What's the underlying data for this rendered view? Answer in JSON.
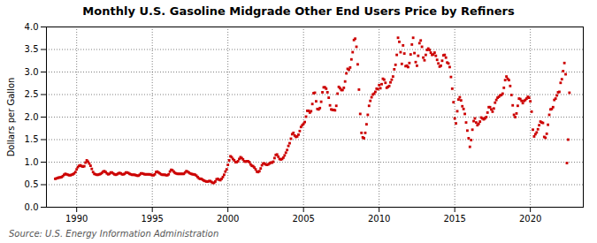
{
  "chart_data": {
    "type": "scatter",
    "title": "Monthly U.S. Gasoline Midgrade Other End Users Price by Refiners",
    "y_label": "Dollars per Gallon",
    "source": "Source: U.S. Energy Information Administration",
    "color": "#cc0000",
    "marker": "square",
    "grid": true,
    "xlim": [
      1988.0,
      2023.5
    ],
    "ylim": [
      0.0,
      4.0
    ],
    "xticks": [
      1990,
      1995,
      2000,
      2005,
      2010,
      2015,
      2020
    ],
    "yticks": [
      {
        "value": 0.0,
        "label": "0.0"
      },
      0.5,
      {
        "value": 1.0,
        "label": "1.0"
      },
      1.5,
      {
        "value": 2.0,
        "label": "2.0"
      },
      2.5,
      {
        "value": 3.0,
        "label": "3.0"
      },
      3.5,
      {
        "value": 4.0,
        "label": "4.0"
      }
    ],
    "x": [
      1988.583,
      1988.667,
      1988.75,
      1988.833,
      1988.917,
      1989.0,
      1989.083,
      1989.167,
      1989.25,
      1989.333,
      1989.417,
      1989.5,
      1989.583,
      1989.667,
      1989.75,
      1989.833,
      1989.917,
      1990.0,
      1990.083,
      1990.167,
      1990.25,
      1990.333,
      1990.417,
      1990.5,
      1990.583,
      1990.667,
      1990.75,
      1990.833,
      1990.917,
      1991.0,
      1991.083,
      1991.167,
      1991.25,
      1991.333,
      1991.417,
      1991.5,
      1991.583,
      1991.667,
      1991.75,
      1991.833,
      1991.917,
      1992.0,
      1992.083,
      1992.167,
      1992.25,
      1992.333,
      1992.417,
      1992.5,
      1992.583,
      1992.667,
      1992.75,
      1992.833,
      1992.917,
      1993.0,
      1993.083,
      1993.167,
      1993.25,
      1993.333,
      1993.417,
      1993.5,
      1993.583,
      1993.667,
      1993.75,
      1993.833,
      1993.917,
      1994.0,
      1994.083,
      1994.167,
      1994.25,
      1994.333,
      1994.417,
      1994.5,
      1994.583,
      1994.667,
      1994.75,
      1994.833,
      1994.917,
      1995.0,
      1995.083,
      1995.167,
      1995.25,
      1995.333,
      1995.417,
      1995.5,
      1995.583,
      1995.667,
      1995.75,
      1995.833,
      1995.917,
      1996.0,
      1996.083,
      1996.167,
      1996.25,
      1996.333,
      1996.417,
      1996.5,
      1996.583,
      1996.667,
      1996.75,
      1996.833,
      1996.917,
      1997.0,
      1997.083,
      1997.167,
      1997.25,
      1997.333,
      1997.417,
      1997.5,
      1997.583,
      1997.667,
      1997.75,
      1997.833,
      1997.917,
      1998.0,
      1998.083,
      1998.167,
      1998.25,
      1998.333,
      1998.417,
      1998.5,
      1998.583,
      1998.667,
      1998.75,
      1998.833,
      1998.917,
      1999.0,
      1999.083,
      1999.167,
      1999.25,
      1999.333,
      1999.417,
      1999.5,
      1999.583,
      1999.667,
      1999.75,
      1999.833,
      1999.917,
      2000.0,
      2000.083,
      2000.167,
      2000.25,
      2000.333,
      2000.417,
      2000.5,
      2000.583,
      2000.667,
      2000.75,
      2000.833,
      2000.917,
      2001.0,
      2001.083,
      2001.167,
      2001.25,
      2001.333,
      2001.417,
      2001.5,
      2001.583,
      2001.667,
      2001.75,
      2001.833,
      2001.917,
      2002.0,
      2002.083,
      2002.167,
      2002.25,
      2002.333,
      2002.417,
      2002.5,
      2002.583,
      2002.667,
      2002.75,
      2002.833,
      2002.917,
      2003.0,
      2003.083,
      2003.167,
      2003.25,
      2003.333,
      2003.417,
      2003.5,
      2003.583,
      2003.667,
      2003.75,
      2003.833,
      2003.917,
      2004.0,
      2004.083,
      2004.167,
      2004.25,
      2004.333,
      2004.417,
      2004.5,
      2004.583,
      2004.667,
      2004.75,
      2004.833,
      2004.917,
      2005.0,
      2005.083,
      2005.167,
      2005.25,
      2005.333,
      2005.417,
      2005.5,
      2005.583,
      2005.667,
      2005.75,
      2005.833,
      2005.917,
      2006.0,
      2006.083,
      2006.167,
      2006.25,
      2006.333,
      2006.417,
      2006.5,
      2006.583,
      2006.667,
      2006.75,
      2006.833,
      2006.917,
      2007.0,
      2007.083,
      2007.167,
      2007.25,
      2007.333,
      2007.417,
      2007.5,
      2007.583,
      2007.667,
      2007.75,
      2007.833,
      2007.917,
      2008.0,
      2008.083,
      2008.167,
      2008.25,
      2008.333,
      2008.417,
      2008.5,
      2008.583,
      2008.667,
      2008.75,
      2008.833,
      2008.917,
      2009.0,
      2009.083,
      2009.167,
      2009.25,
      2009.333,
      2009.417,
      2009.5,
      2009.583,
      2009.667,
      2009.75,
      2009.833,
      2009.917,
      2010.0,
      2010.083,
      2010.167,
      2010.25,
      2010.333,
      2010.417,
      2010.5,
      2010.583,
      2010.667,
      2010.75,
      2010.833,
      2010.917,
      2011.0,
      2011.083,
      2011.167,
      2011.25,
      2011.333,
      2011.417,
      2011.5,
      2011.583,
      2011.667,
      2011.75,
      2011.833,
      2011.917,
      2012.0,
      2012.083,
      2012.167,
      2012.25,
      2012.333,
      2012.417,
      2012.5,
      2012.583,
      2012.667,
      2012.75,
      2012.833,
      2012.917,
      2013.0,
      2013.083,
      2013.167,
      2013.25,
      2013.333,
      2013.417,
      2013.5,
      2013.583,
      2013.667,
      2013.75,
      2013.833,
      2013.917,
      2014.0,
      2014.083,
      2014.167,
      2014.25,
      2014.333,
      2014.417,
      2014.5,
      2014.583,
      2014.667,
      2014.75,
      2014.833,
      2014.917,
      2015.0,
      2015.083,
      2015.167,
      2015.25,
      2015.333,
      2015.417,
      2015.5,
      2015.583,
      2015.667,
      2015.75,
      2015.833,
      2015.917,
      2016.0,
      2016.083,
      2016.167,
      2016.25,
      2016.333,
      2016.417,
      2016.5,
      2016.583,
      2016.667,
      2016.75,
      2016.833,
      2016.917,
      2017.0,
      2017.083,
      2017.167,
      2017.25,
      2017.333,
      2017.417,
      2017.5,
      2017.583,
      2017.667,
      2017.75,
      2017.833,
      2017.917,
      2018.0,
      2018.083,
      2018.167,
      2018.25,
      2018.333,
      2018.417,
      2018.5,
      2018.583,
      2018.667,
      2018.75,
      2018.833,
      2018.917,
      2019.0,
      2019.083,
      2019.167,
      2019.25,
      2019.333,
      2019.417,
      2019.5,
      2019.583,
      2019.667,
      2019.75,
      2019.833,
      2019.917,
      2020.0,
      2020.083,
      2020.167,
      2020.25,
      2020.333,
      2020.417,
      2020.5,
      2020.583,
      2020.667,
      2020.75,
      2020.833,
      2020.917,
      2021.0,
      2021.083,
      2021.167,
      2021.25,
      2021.333,
      2021.417,
      2021.5,
      2021.583,
      2021.667,
      2021.75,
      2021.833,
      2021.917,
      2022.0,
      2022.083,
      2022.167,
      2022.25,
      2022.333,
      2022.417,
      2022.5,
      2022.583
    ],
    "values": [
      0.63,
      0.64,
      0.65,
      0.66,
      0.66,
      0.67,
      0.69,
      0.72,
      0.74,
      0.73,
      0.72,
      0.71,
      0.71,
      0.72,
      0.73,
      0.75,
      0.78,
      0.84,
      0.89,
      0.92,
      0.93,
      0.91,
      0.9,
      0.91,
      0.99,
      1.04,
      1.01,
      0.97,
      0.92,
      0.85,
      0.78,
      0.74,
      0.73,
      0.72,
      0.72,
      0.73,
      0.74,
      0.76,
      0.79,
      0.8,
      0.78,
      0.75,
      0.73,
      0.74,
      0.77,
      0.77,
      0.75,
      0.73,
      0.72,
      0.73,
      0.75,
      0.76,
      0.75,
      0.73,
      0.73,
      0.74,
      0.77,
      0.77,
      0.76,
      0.74,
      0.73,
      0.72,
      0.72,
      0.72,
      0.71,
      0.7,
      0.7,
      0.72,
      0.75,
      0.75,
      0.74,
      0.73,
      0.73,
      0.73,
      0.73,
      0.73,
      0.72,
      0.71,
      0.71,
      0.73,
      0.78,
      0.79,
      0.77,
      0.75,
      0.73,
      0.72,
      0.72,
      0.72,
      0.71,
      0.71,
      0.73,
      0.79,
      0.83,
      0.82,
      0.79,
      0.76,
      0.75,
      0.74,
      0.74,
      0.74,
      0.74,
      0.74,
      0.74,
      0.77,
      0.8,
      0.79,
      0.77,
      0.75,
      0.74,
      0.73,
      0.73,
      0.72,
      0.7,
      0.67,
      0.64,
      0.63,
      0.63,
      0.61,
      0.59,
      0.58,
      0.57,
      0.57,
      0.58,
      0.58,
      0.56,
      0.54,
      0.54,
      0.57,
      0.62,
      0.63,
      0.61,
      0.6,
      0.63,
      0.67,
      0.72,
      0.79,
      0.84,
      0.94,
      1.04,
      1.13,
      1.11,
      1.07,
      1.04,
      1.0,
      1.0,
      1.02,
      1.07,
      1.11,
      1.09,
      1.06,
      1.02,
      1.01,
      1.02,
      1.02,
      1.0,
      0.95,
      0.92,
      0.91,
      0.88,
      0.84,
      0.79,
      0.78,
      0.8,
      0.86,
      0.93,
      0.97,
      0.97,
      0.95,
      0.94,
      0.95,
      0.97,
      0.99,
      0.99,
      1.01,
      1.09,
      1.16,
      1.17,
      1.12,
      1.07,
      1.06,
      1.07,
      1.1,
      1.15,
      1.21,
      1.27,
      1.36,
      1.42,
      1.52,
      1.62,
      1.65,
      1.59,
      1.56,
      1.57,
      1.61,
      1.69,
      1.78,
      1.82,
      1.85,
      1.89,
      2.01,
      2.14,
      2.14,
      2.1,
      2.13,
      2.29,
      2.53,
      2.54,
      2.35,
      2.18,
      2.17,
      2.2,
      2.34,
      2.55,
      2.66,
      2.66,
      2.63,
      2.55,
      2.43,
      2.26,
      2.17,
      2.16,
      2.16,
      2.15,
      2.25,
      2.52,
      2.67,
      2.64,
      2.6,
      2.6,
      2.65,
      2.79,
      2.97,
      3.07,
      3.05,
      3.1,
      3.28,
      3.44,
      3.71,
      3.74,
      3.56,
      3.17,
      2.61,
      2.07,
      1.65,
      1.55,
      1.53,
      1.65,
      1.84,
      2.05,
      2.25,
      2.36,
      2.44,
      2.5,
      2.52,
      2.56,
      2.63,
      2.62,
      2.71,
      2.64,
      2.73,
      2.85,
      2.83,
      2.76,
      2.65,
      2.67,
      2.69,
      2.77,
      2.83,
      2.9,
      3.06,
      3.16,
      3.38,
      3.76,
      3.67,
      3.44,
      3.18,
      3.59,
      3.41,
      3.13,
      3.14,
      3.11,
      3.2,
      3.39,
      3.61,
      3.76,
      3.42,
      3.22,
      3.14,
      3.36,
      3.64,
      3.7,
      3.56,
      3.32,
      3.26,
      3.38,
      3.49,
      3.52,
      3.49,
      3.43,
      3.38,
      3.39,
      3.43,
      3.36,
      3.27,
      3.19,
      3.12,
      3.14,
      3.25,
      3.37,
      3.38,
      3.32,
      3.21,
      3.19,
      3.11,
      2.89,
      2.63,
      2.33,
      1.97,
      1.86,
      2.13,
      2.39,
      2.44,
      2.37,
      2.24,
      2.18,
      2.07,
      1.88,
      1.7,
      1.53,
      1.34,
      1.49,
      1.72,
      1.91,
      1.97,
      1.88,
      1.82,
      1.85,
      1.9,
      1.99,
      1.97,
      1.95,
      1.97,
      2.0,
      2.1,
      2.22,
      2.22,
      2.17,
      2.12,
      2.19,
      2.32,
      2.38,
      2.43,
      2.45,
      2.48,
      2.49,
      2.52,
      2.65,
      2.82,
      2.9,
      2.85,
      2.82,
      2.69,
      2.49,
      2.26,
      2.05,
      2.0,
      2.08,
      2.25,
      2.41,
      2.4,
      2.36,
      2.31,
      2.36,
      2.38,
      2.41,
      2.45,
      2.43,
      2.35,
      2.12,
      1.72,
      1.57,
      1.62,
      1.66,
      1.73,
      1.82,
      1.9,
      1.88,
      1.87,
      1.56,
      1.54,
      1.63,
      1.83,
      2.05,
      2.17,
      2.18,
      2.22,
      2.38,
      2.41,
      2.48,
      2.55,
      2.56,
      2.76,
      2.84,
      3.02,
      3.2,
      2.95,
      0.98,
      1.5,
      2.54
    ]
  }
}
